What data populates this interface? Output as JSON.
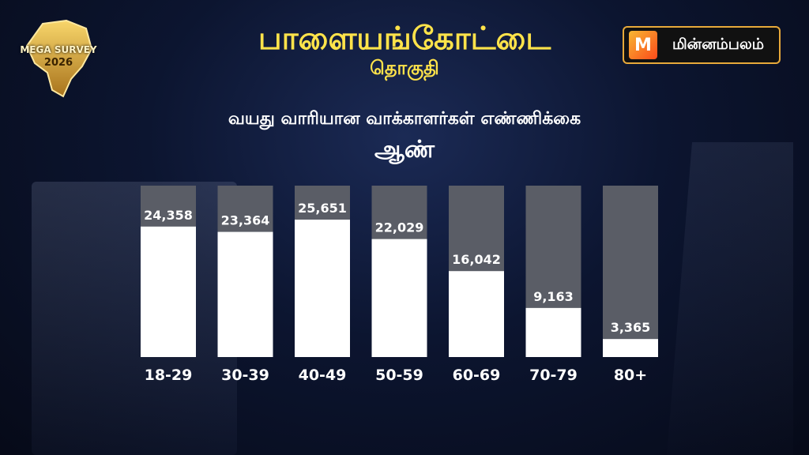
{
  "header": {
    "title": "பாளையங்கோட்டை",
    "subtitle": "தொகுதி",
    "heading": "வயது வாரியான வாக்காளர்கள் எண்ணிக்கை",
    "subheading": "ஆண்"
  },
  "logo": {
    "line1": "MEGA SURVEY",
    "line2": "2026"
  },
  "brand": {
    "name": "மின்னம்பலம்",
    "mark": "M"
  },
  "colors": {
    "title": "#ffe34a",
    "bar_fill": "#ffffff",
    "bar_track": "#5a5d66",
    "value_label": "#ffffff"
  },
  "chart_data": {
    "type": "bar",
    "categories": [
      "18-29",
      "30-39",
      "40-49",
      "50-59",
      "60-69",
      "70-79",
      "80+"
    ],
    "values": [
      24358,
      23364,
      25651,
      22029,
      16042,
      9163,
      3365
    ],
    "value_labels": [
      "24,358",
      "23,364",
      "25,651",
      "22,029",
      "16,042",
      "9,163",
      "3,365"
    ],
    "ylim": [
      0,
      32000
    ],
    "grid": false,
    "legend": "none"
  }
}
